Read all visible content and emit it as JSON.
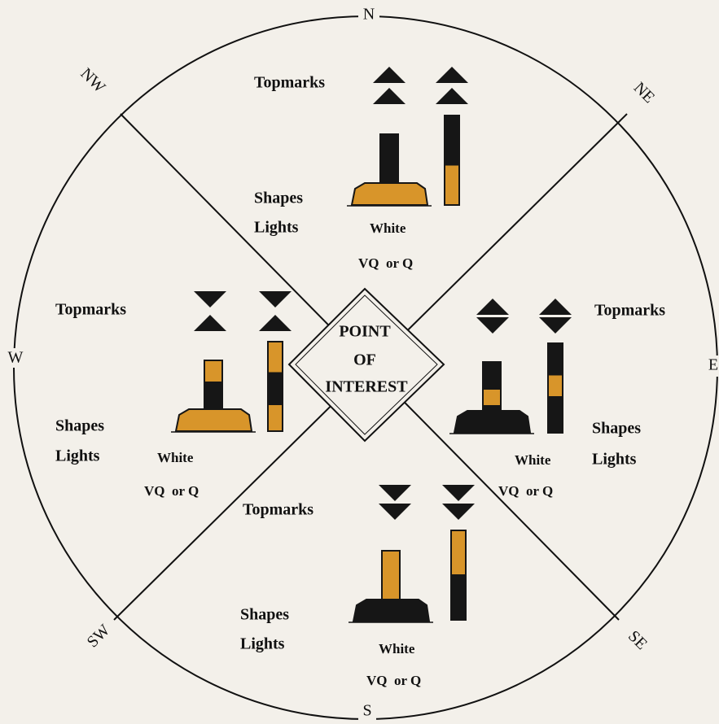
{
  "compass": {
    "n": "N",
    "ne": "NE",
    "e": "E",
    "se": "SE",
    "s": "S",
    "sw": "SW",
    "w": "W",
    "nw": "NW"
  },
  "center": [
    "POINT",
    "OF",
    "INTEREST"
  ],
  "marks": {
    "north": {
      "topmarks": "Topmarks",
      "shapes": "Shapes",
      "lights": "Lights",
      "color": "White",
      "rhythm": "VQ  or Q"
    },
    "east": {
      "topmarks": "Topmarks",
      "shapes": "Shapes",
      "lights": "Lights",
      "color": "White",
      "rhythm": "VQ  or Q"
    },
    "south": {
      "topmarks": "Topmarks",
      "shapes": "Shapes",
      "lights": "Lights",
      "color": "White",
      "rhythm": "VQ  or Q"
    },
    "west": {
      "topmarks": "Topmarks",
      "shapes": "Shapes",
      "lights": "Lights",
      "color": "White",
      "rhythm": "VQ  or Q"
    }
  }
}
